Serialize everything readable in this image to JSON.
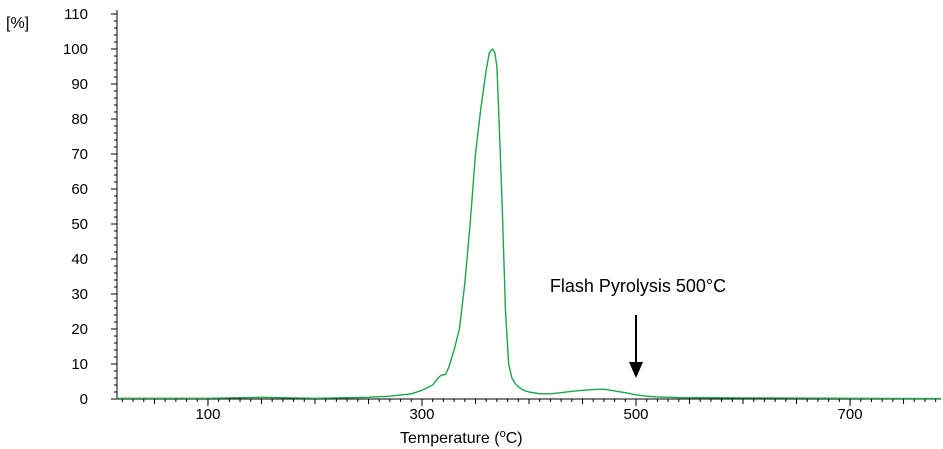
{
  "chart_data": {
    "type": "line",
    "title": "",
    "xlabel_main": "Temperature (",
    "xlabel_sup": "o",
    "xlabel_end": "C)",
    "ylabel": "[%]",
    "xlim": [
      15,
      785
    ],
    "ylim": [
      0,
      110
    ],
    "x_ticks": [
      100,
      300,
      500,
      700
    ],
    "y_ticks": [
      0,
      10,
      20,
      30,
      40,
      50,
      60,
      70,
      80,
      90,
      100,
      110
    ],
    "grid": false,
    "line_color": "#1aa64a",
    "series": [
      {
        "x": [
          15,
          100,
          150,
          200,
          250,
          270,
          290,
          300,
          310,
          315,
          318,
          322,
          325,
          330,
          335,
          340,
          345,
          350,
          355,
          360,
          363,
          366,
          368,
          370,
          372,
          375,
          378,
          381,
          384,
          387,
          390,
          395,
          400,
          410,
          420,
          430,
          440,
          450,
          460,
          470,
          480,
          490,
          500,
          510,
          520,
          540,
          600,
          700,
          785
        ],
        "y": [
          0.2,
          0.2,
          0.5,
          0.2,
          0.5,
          0.8,
          1.5,
          2.5,
          4,
          6,
          6.8,
          7,
          9,
          14,
          20,
          33,
          50,
          70,
          83,
          94,
          99,
          100,
          99,
          95,
          80,
          55,
          25,
          10,
          6,
          4.5,
          3.5,
          2.5,
          2,
          1.5,
          1.5,
          1.8,
          2.2,
          2.5,
          2.7,
          2.8,
          2.3,
          1.8,
          1.2,
          0.8,
          0.6,
          0.4,
          0.3,
          0.2,
          0.1
        ]
      }
    ],
    "annotation": {
      "text": "Flash Pyrolysis 500°C",
      "x": 500,
      "arrow_top_y": 24,
      "arrow_bottom_y": 6
    }
  }
}
